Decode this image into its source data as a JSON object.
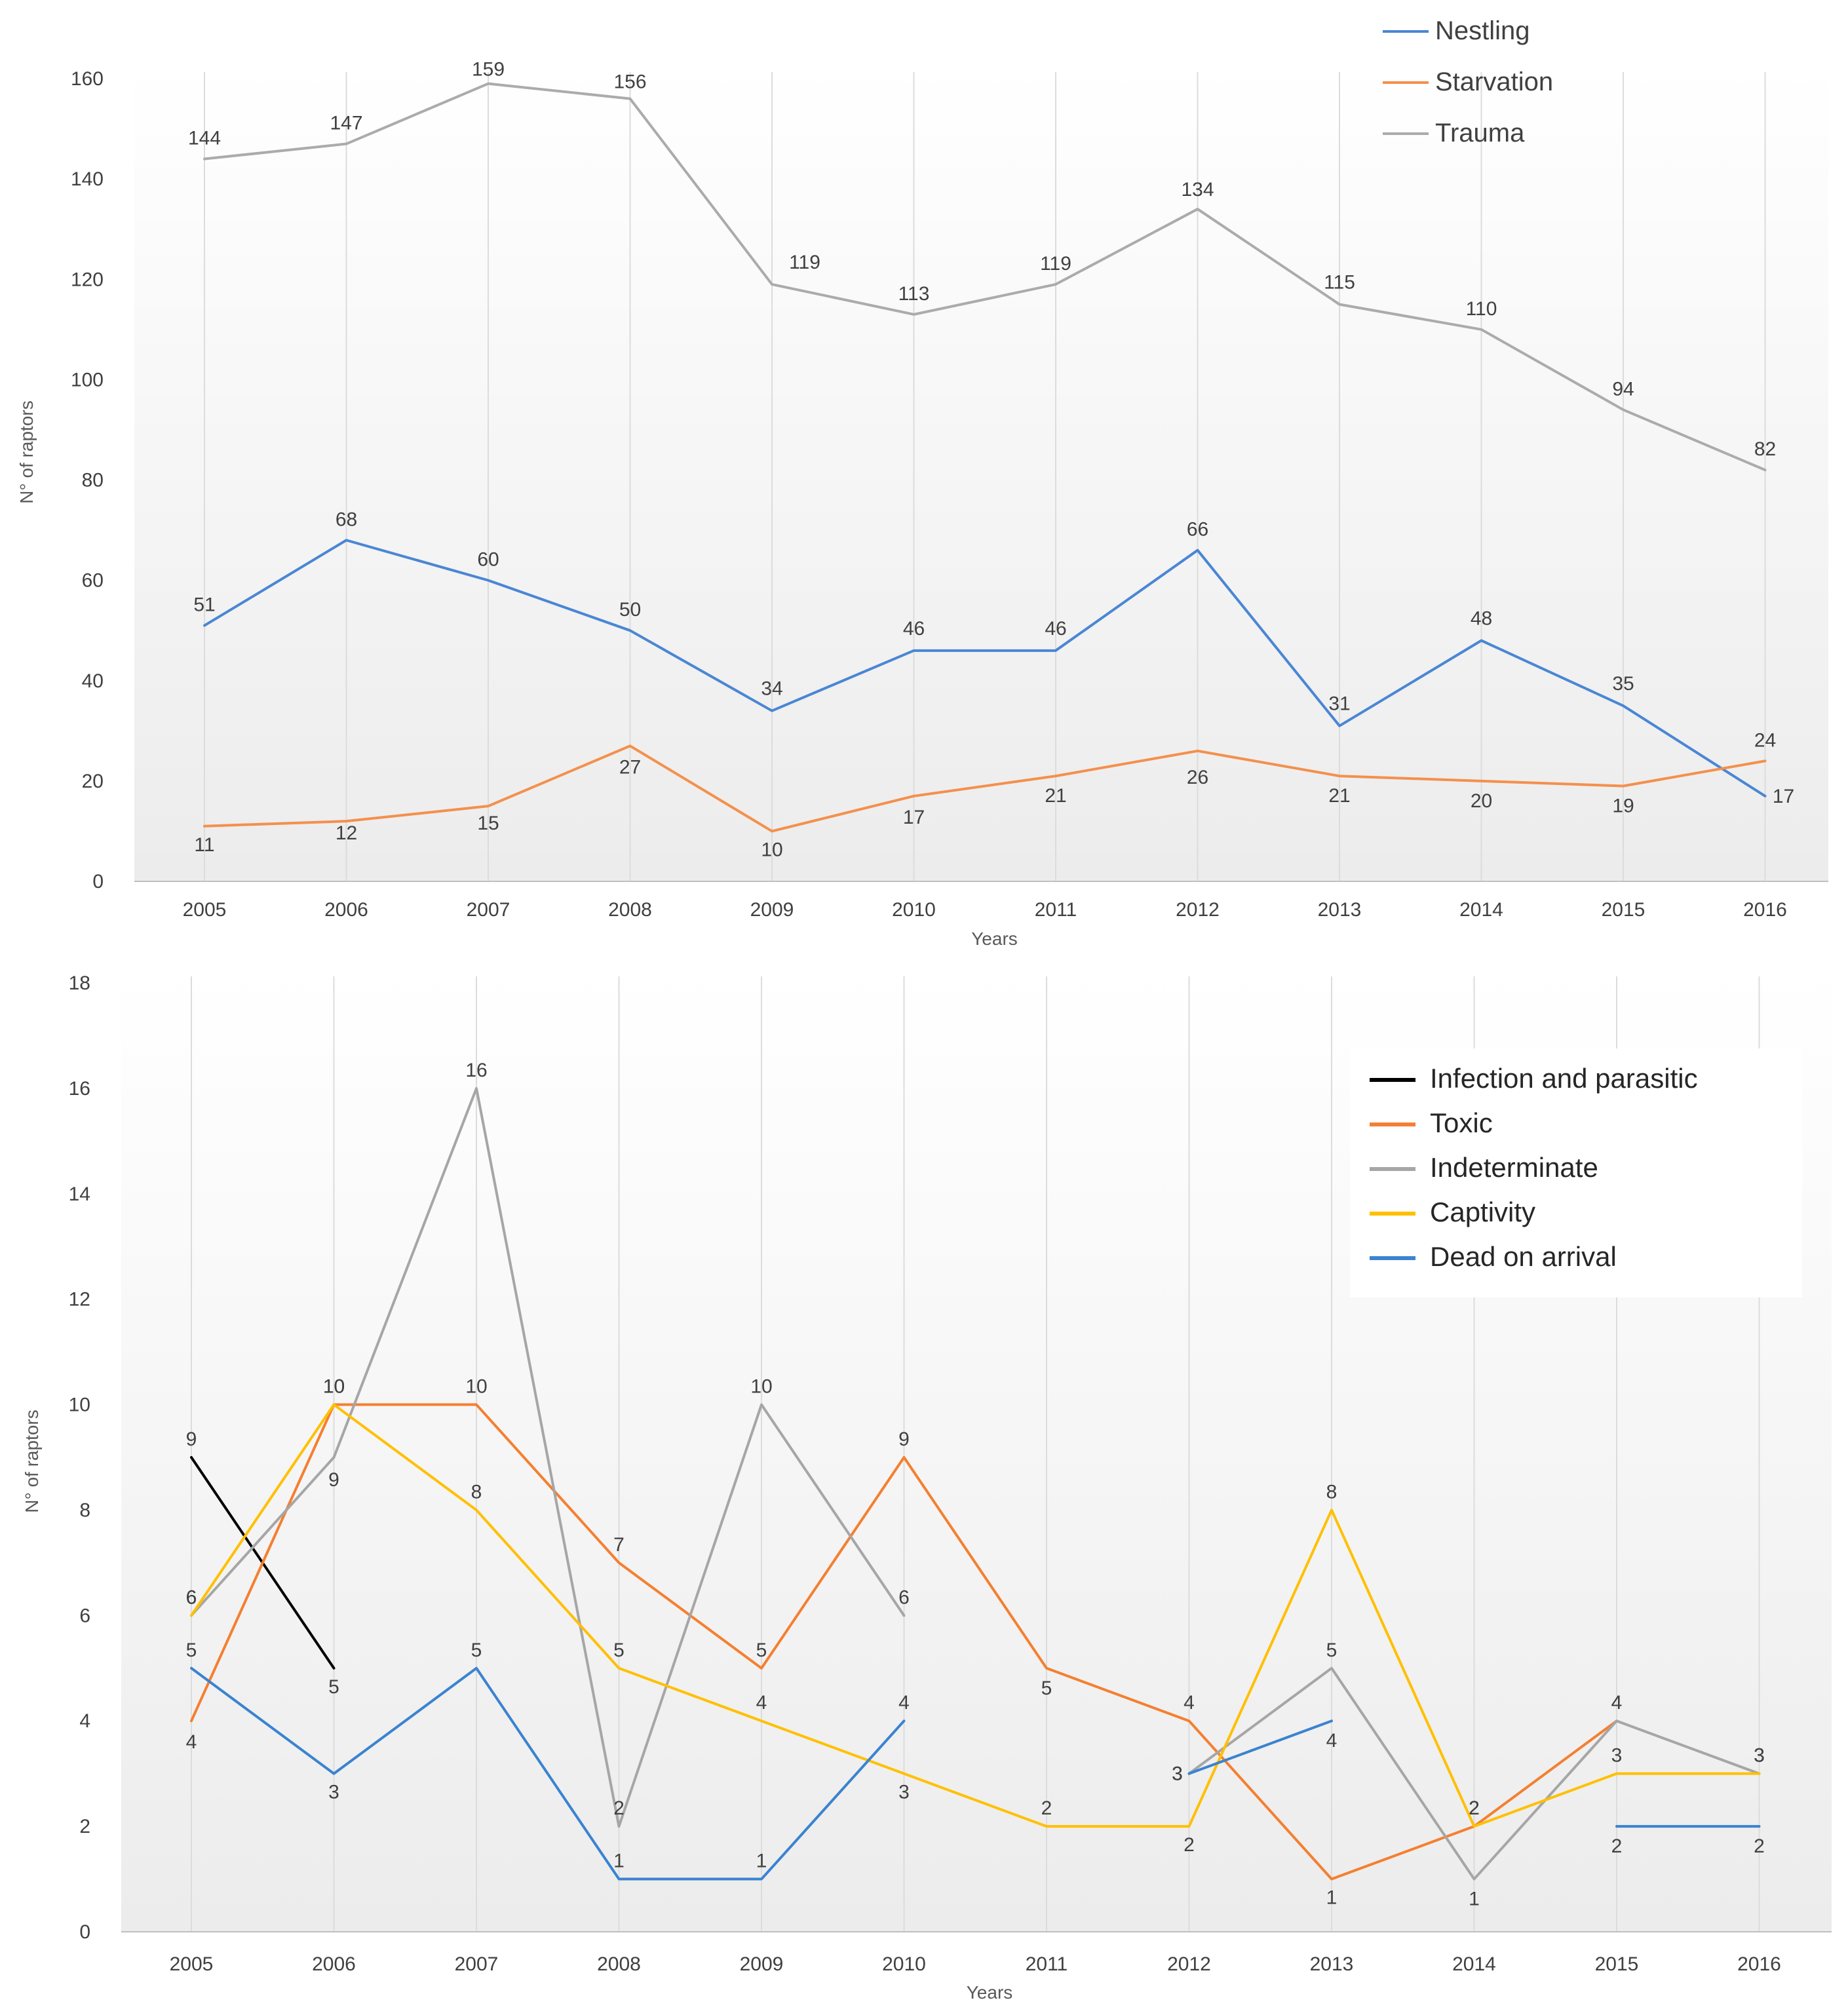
{
  "chart_data": [
    {
      "type": "line",
      "title": "",
      "xlabel": "Years",
      "ylabel": "N° of raptors",
      "categories": [
        "2005",
        "2006",
        "2007",
        "2008",
        "2009",
        "2010",
        "2011",
        "2012",
        "2013",
        "2014",
        "2015",
        "2016"
      ],
      "ylim": [
        0,
        160
      ],
      "yticks": [
        "0",
        "20",
        "40",
        "60",
        "80",
        "100",
        "120",
        "140",
        "160"
      ],
      "grid": "vertical",
      "legend_position": "top-right",
      "series": [
        {
          "name": "Nestling",
          "color": "#4A86D4",
          "values": [
            51,
            68,
            60,
            50,
            34,
            46,
            46,
            66,
            31,
            48,
            35,
            17
          ]
        },
        {
          "name": "Starvation",
          "color": "#F4904C",
          "values": [
            11,
            12,
            15,
            27,
            10,
            17,
            21,
            26,
            21,
            20,
            19,
            24
          ]
        },
        {
          "name": "Trauma",
          "color": "#ABABAB",
          "values": [
            144,
            147,
            159,
            156,
            119,
            113,
            119,
            134,
            115,
            110,
            94,
            82
          ]
        }
      ]
    },
    {
      "type": "line",
      "title": "",
      "xlabel": "Years",
      "ylabel": "N° of raptors",
      "categories": [
        "2005",
        "2006",
        "2007",
        "2008",
        "2009",
        "2010",
        "2011",
        "2012",
        "2013",
        "2014",
        "2015",
        "2016"
      ],
      "ylim": [
        0,
        18
      ],
      "yticks": [
        "0",
        "2",
        "4",
        "6",
        "8",
        "10",
        "12",
        "14",
        "16",
        "18"
      ],
      "grid": "vertical",
      "legend_position": "top-right",
      "series": [
        {
          "name": "Infection and parasitic",
          "color": "#000000",
          "values": [
            9,
            5,
            null,
            null,
            null,
            null,
            null,
            null,
            null,
            null,
            null,
            null
          ]
        },
        {
          "name": "Toxic",
          "color": "#F57F30",
          "values": [
            4,
            10,
            10,
            7,
            5,
            9,
            5,
            4,
            1,
            2,
            4,
            null
          ]
        },
        {
          "name": "Indeterminate",
          "color": "#A6A6A6",
          "values": [
            6,
            9,
            16,
            2,
            10,
            6,
            null,
            3,
            5,
            1,
            4,
            3
          ]
        },
        {
          "name": "Captivity",
          "color": "#FFC000",
          "values": [
            6,
            10,
            8,
            5,
            4,
            3,
            2,
            2,
            8,
            2,
            3,
            3
          ]
        },
        {
          "name": "Dead on arrival",
          "color": "#3A83D0",
          "values": [
            5,
            3,
            5,
            1,
            1,
            4,
            null,
            3,
            4,
            null,
            2,
            2
          ]
        }
      ]
    }
  ]
}
